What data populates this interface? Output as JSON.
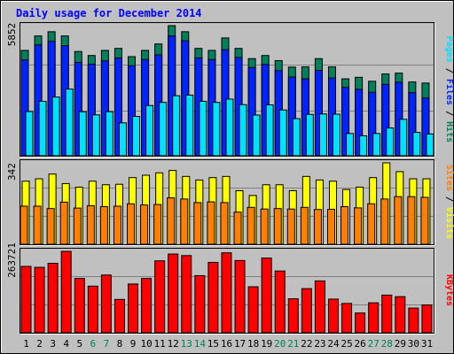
{
  "chart_data": [
    {
      "type": "bar",
      "title": "Daily usage for December 2014",
      "categories": [
        "1",
        "2",
        "3",
        "4",
        "5",
        "6",
        "7",
        "8",
        "9",
        "10",
        "11",
        "12",
        "13",
        "14",
        "15",
        "16",
        "17",
        "18",
        "19",
        "20",
        "21",
        "22",
        "23",
        "24",
        "25",
        "26",
        "27",
        "28",
        "29",
        "30",
        "31"
      ],
      "weekend_days": [
        "6",
        "7",
        "13",
        "14",
        "20",
        "21",
        "27",
        "28"
      ],
      "ylabel_max": "5852",
      "ylim": [
        0,
        5852
      ],
      "grid": true,
      "series": [
        {
          "name": "Hits",
          "color": "#00805c",
          "values": [
            4740,
            5390,
            5580,
            5390,
            4690,
            4510,
            4740,
            4830,
            4460,
            4740,
            5030,
            5852,
            5580,
            4830,
            4740,
            5300,
            4830,
            4370,
            4510,
            4280,
            3990,
            4000,
            4370,
            4000,
            3460,
            3530,
            3350,
            3680,
            3720,
            3320,
            3270
          ]
        },
        {
          "name": "Files",
          "color": "#0024ff",
          "values": [
            4310,
            4990,
            5150,
            4950,
            4200,
            4120,
            4270,
            4400,
            4050,
            4330,
            4540,
            5390,
            5170,
            4400,
            4330,
            4770,
            4420,
            3970,
            4110,
            3830,
            3540,
            3460,
            3840,
            3500,
            3080,
            2990,
            2860,
            3210,
            3310,
            2840,
            2600
          ]
        },
        {
          "name": "Pages",
          "color": "#00e0ff",
          "values": [
            1990,
            2450,
            2640,
            3000,
            1980,
            1840,
            1980,
            1480,
            1770,
            2260,
            2400,
            2700,
            2730,
            2450,
            2400,
            2550,
            2300,
            1830,
            2290,
            2060,
            1670,
            1860,
            1880,
            1870,
            1000,
            900,
            1000,
            1250,
            1640,
            1050,
            980
          ]
        }
      ]
    },
    {
      "type": "bar",
      "ylabel_max": "342",
      "ylim": [
        0,
        342
      ],
      "grid": true,
      "series": [
        {
          "name": "Visits",
          "color": "#ffff00",
          "values": [
            265,
            275,
            295,
            255,
            240,
            265,
            250,
            252,
            280,
            290,
            300,
            310,
            285,
            270,
            280,
            285,
            225,
            205,
            250,
            250,
            225,
            285,
            270,
            265,
            230,
            240,
            280,
            342,
            305,
            275,
            275
          ]
        },
        {
          "name": "Sites",
          "color": "#ff8000",
          "values": [
            160,
            160,
            150,
            177,
            152,
            162,
            158,
            160,
            170,
            165,
            167,
            195,
            190,
            175,
            178,
            175,
            135,
            155,
            148,
            150,
            148,
            155,
            146,
            147,
            158,
            153,
            170,
            190,
            200,
            200,
            197
          ]
        }
      ]
    },
    {
      "type": "bar",
      "ylabel_max": "263721",
      "ylim": [
        0,
        263721
      ],
      "grid": true,
      "series": [
        {
          "name": "KBytes",
          "color": "#ff0000",
          "values": [
            215000,
            212000,
            225000,
            263721,
            176000,
            151000,
            187000,
            108000,
            158000,
            176000,
            233000,
            255000,
            250000,
            185000,
            228000,
            259000,
            234000,
            149000,
            242000,
            200000,
            110000,
            143000,
            168000,
            109000,
            95000,
            64000,
            97000,
            122000,
            117000,
            80000,
            90000
          ]
        }
      ]
    }
  ]
}
